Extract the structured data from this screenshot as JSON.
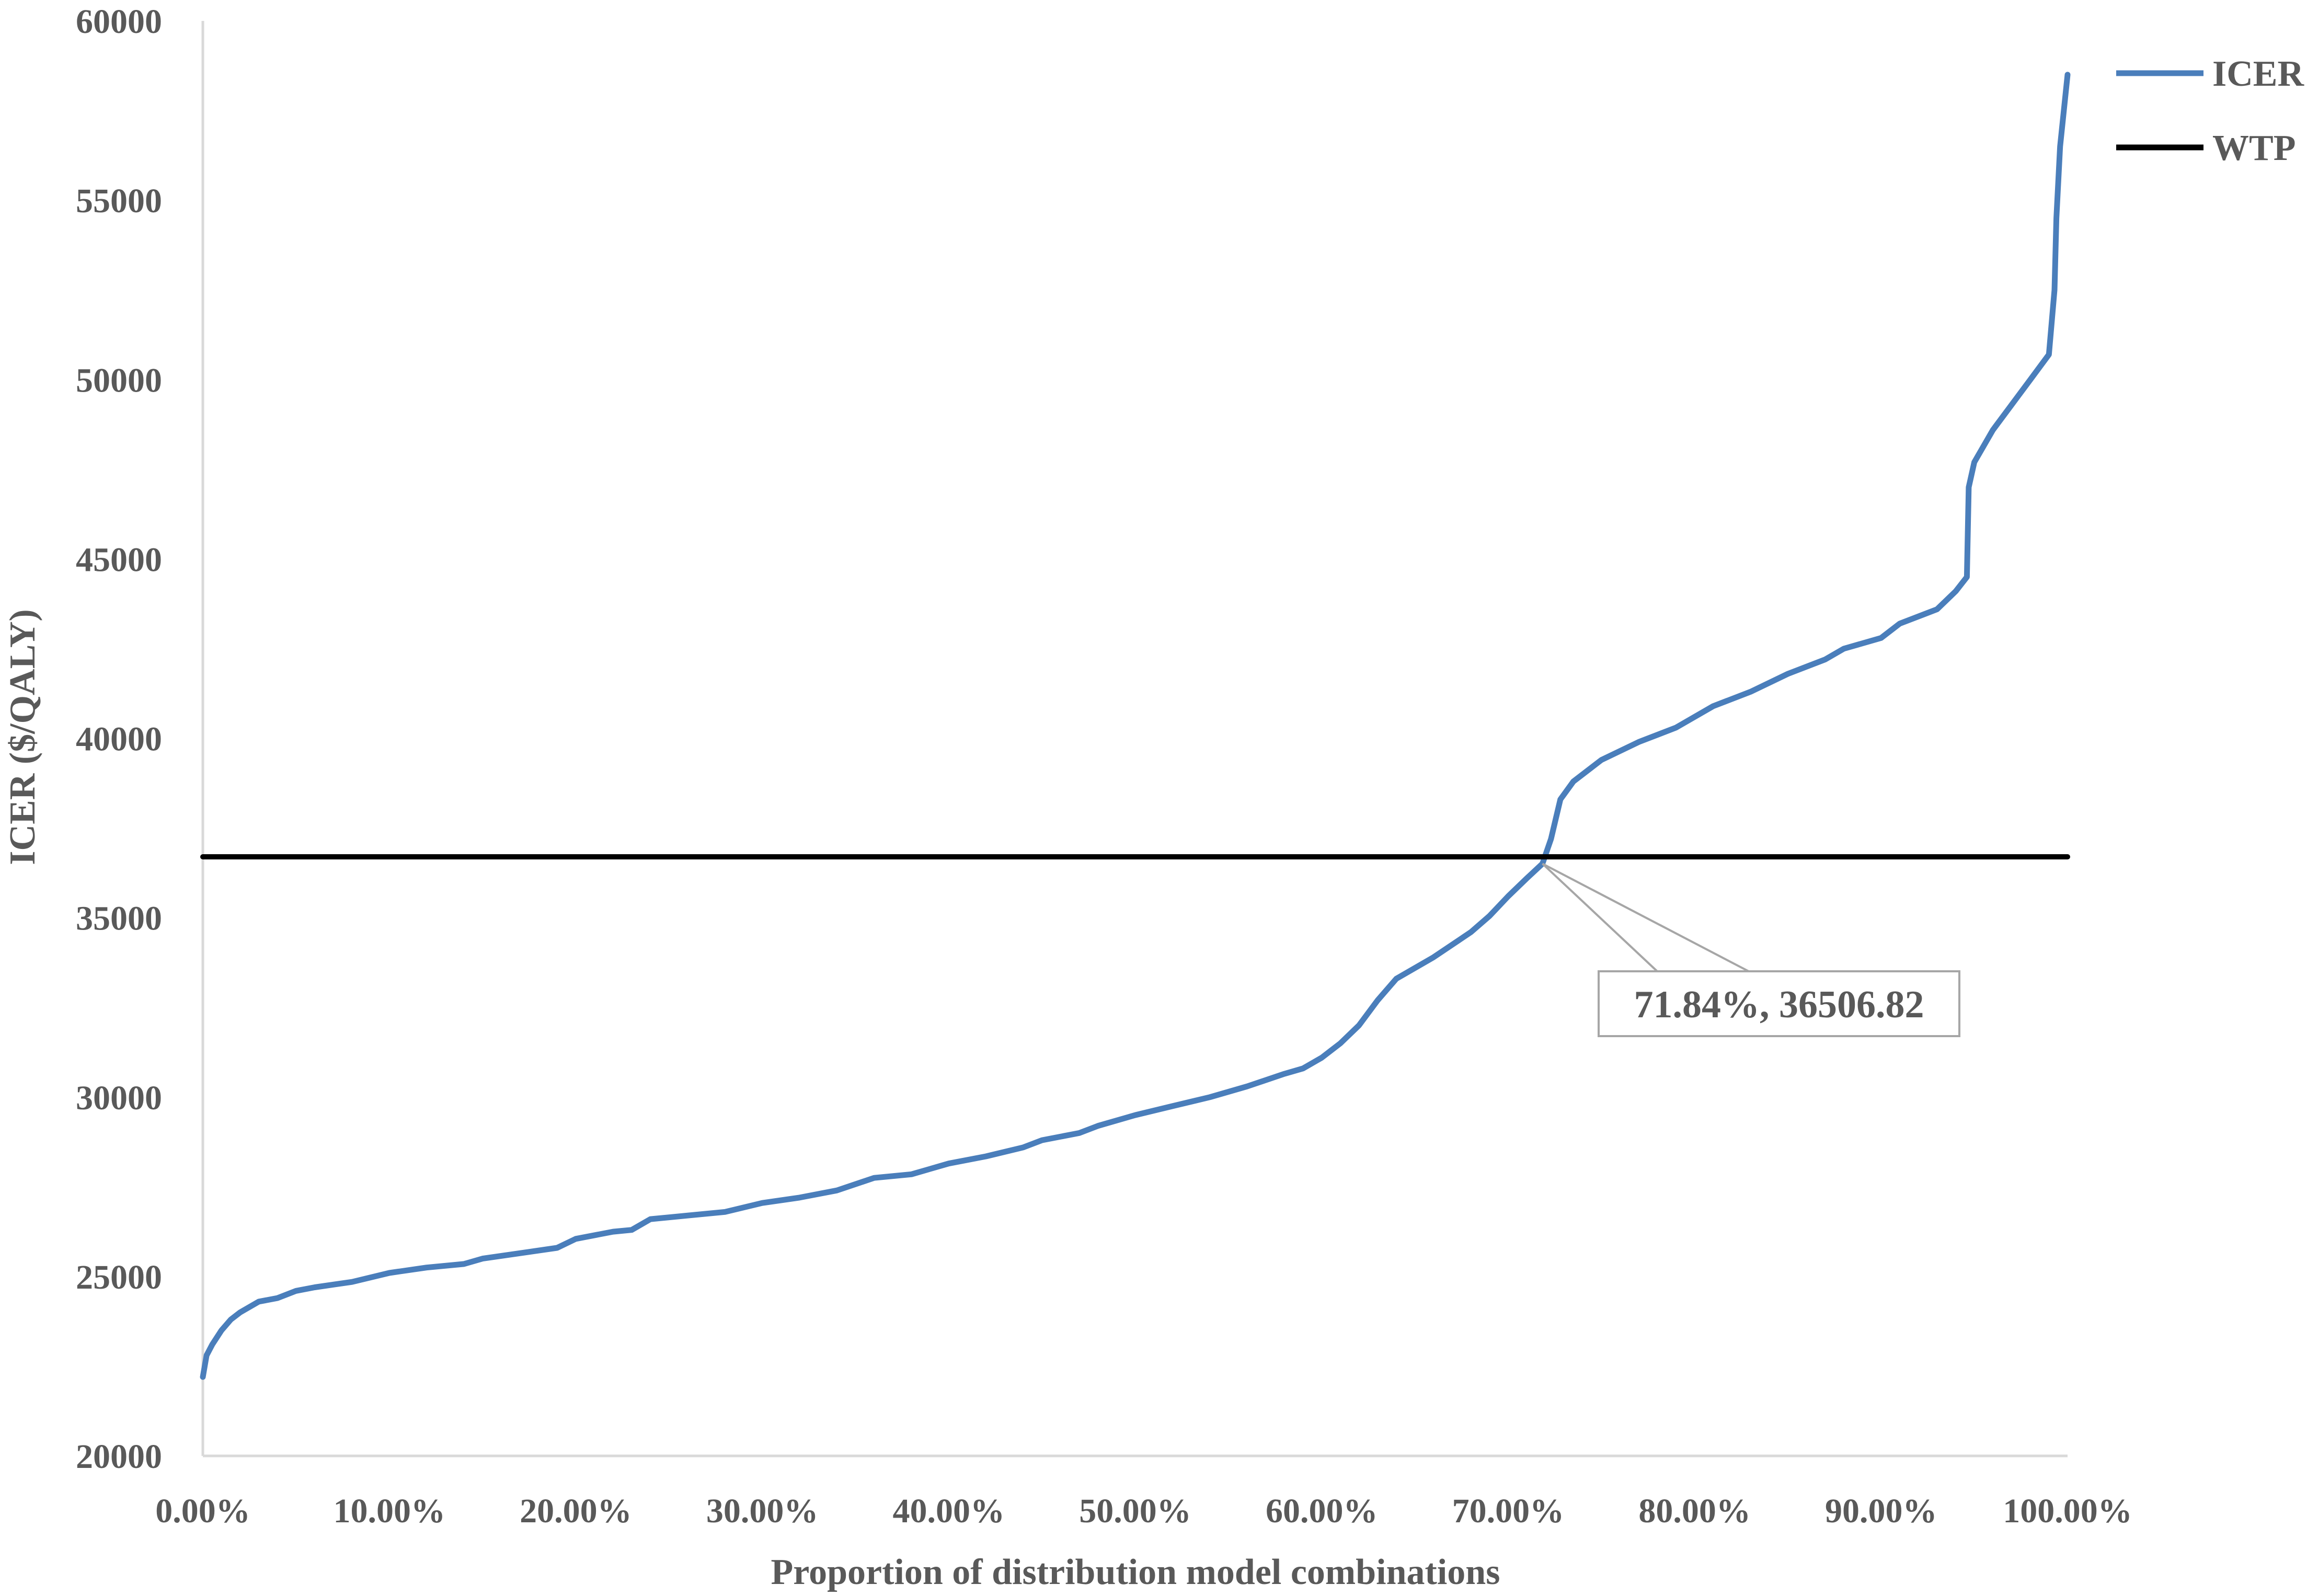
{
  "chart_data": {
    "type": "line",
    "xlabel": "Proportion of distribution model combinations",
    "ylabel": "ICER ($/QALY)",
    "xlim": [
      0,
      100
    ],
    "ylim": [
      20000,
      60000
    ],
    "x_ticks": [
      "0.00%",
      "10.00%",
      "20.00%",
      "30.00%",
      "40.00%",
      "50.00%",
      "60.00%",
      "70.00%",
      "80.00%",
      "90.00%",
      "100.00%"
    ],
    "y_ticks": [
      "20000",
      "25000",
      "30000",
      "35000",
      "40000",
      "45000",
      "50000",
      "55000",
      "60000"
    ],
    "legend_position": "top-right",
    "grid": false,
    "series": [
      {
        "name": "ICER",
        "color": "#4a7ebb",
        "x": [
          0,
          0.2,
          0.5,
          1,
          1.5,
          2,
          3,
          4,
          5,
          6,
          8,
          10,
          12,
          14,
          15,
          17,
          19,
          20,
          22,
          23,
          24,
          26,
          28,
          30,
          32,
          34,
          36,
          38,
          40,
          42,
          44,
          45,
          47,
          48,
          50,
          52,
          54,
          56,
          58,
          59,
          60,
          61,
          62,
          63,
          64,
          66,
          68,
          69,
          70,
          71,
          71.84,
          72.3,
          72.8,
          73.5,
          75,
          77,
          79,
          81,
          83,
          85,
          87,
          88,
          90,
          91,
          93,
          94,
          94.6,
          94.7,
          95,
          96,
          97,
          98,
          99,
          99.3,
          99.4,
          99.6,
          100
        ],
        "values": [
          22200,
          22800,
          23100,
          23500,
          23800,
          24000,
          24300,
          24400,
          24600,
          24700,
          24850,
          25100,
          25250,
          25350,
          25500,
          25650,
          25800,
          26050,
          26250,
          26300,
          26600,
          26700,
          26800,
          27050,
          27200,
          27400,
          27750,
          27850,
          28150,
          28350,
          28600,
          28800,
          29000,
          29200,
          29500,
          29750,
          30000,
          30300,
          30650,
          30800,
          31100,
          31500,
          32000,
          32700,
          33300,
          33900,
          34600,
          35050,
          35600,
          36100,
          36506.82,
          37200,
          38300,
          38800,
          39400,
          39900,
          40300,
          40900,
          41300,
          41800,
          42200,
          42500,
          42800,
          43200,
          43600,
          44100,
          44500,
          47000,
          47700,
          48600,
          49300,
          50000,
          50700,
          52500,
          54500,
          56500,
          58500
        ]
      },
      {
        "name": "WTP",
        "color": "#000000",
        "x": [
          0,
          100
        ],
        "values": [
          36700,
          36700
        ]
      }
    ],
    "annotations": [
      {
        "text": "71.84%, 36506.82",
        "x": 71.84,
        "y": 36506.82
      }
    ]
  }
}
